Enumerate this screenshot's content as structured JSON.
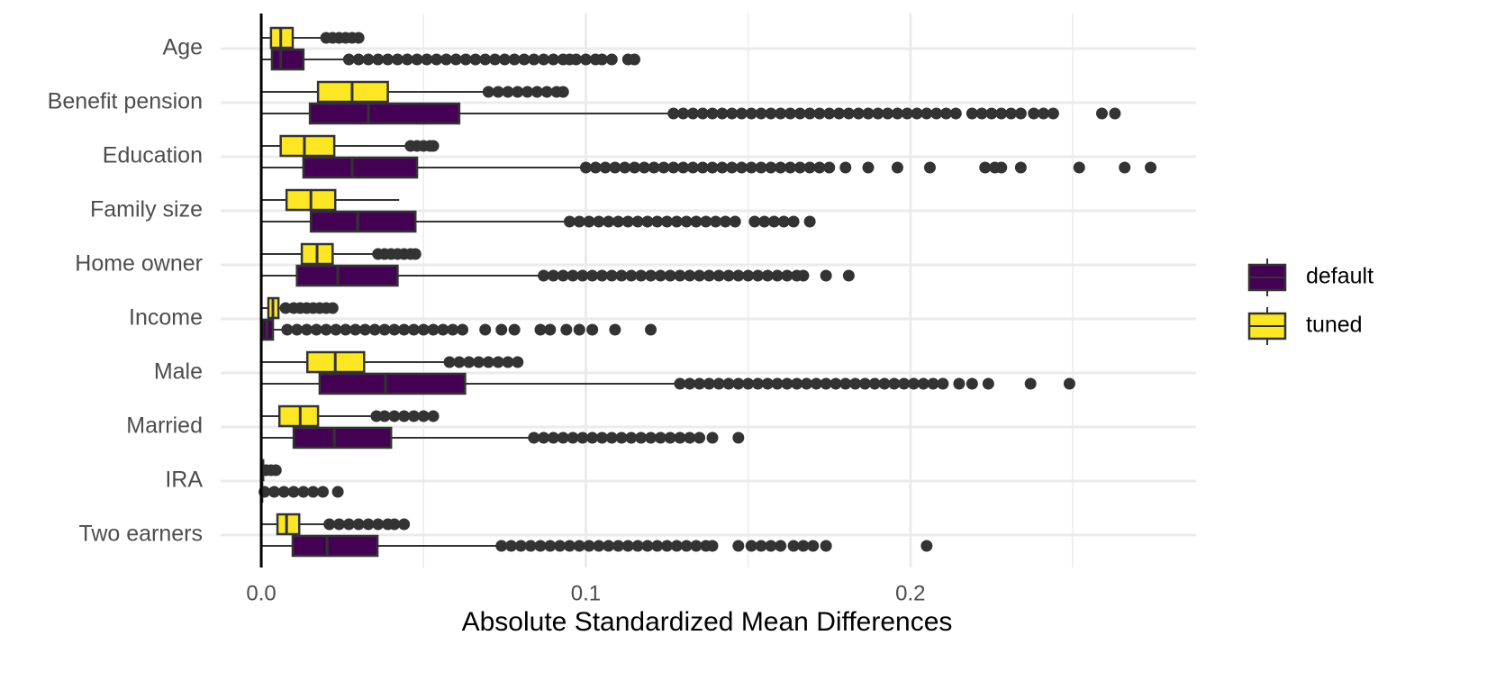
{
  "chart_data": {
    "type": "boxplot",
    "orientation": "horizontal",
    "x_label": "Absolute Standardized Mean Differences",
    "categories": [
      "Age",
      "Benefit pension",
      "Education",
      "Family size",
      "Home owner",
      "Income",
      "Male",
      "Married",
      "IRA",
      "Two earners"
    ],
    "xlim": [
      -0.0125,
      0.288
    ],
    "xticks": [
      {
        "value": 0,
        "label": "0.0"
      },
      {
        "value": 0.1,
        "label": "0.1"
      },
      {
        "value": 0.2,
        "label": "0.2"
      }
    ],
    "minor_xticks": [
      0.05,
      0.15,
      0.25
    ],
    "vline": 0,
    "grid": true,
    "legend_position": "right",
    "series": [
      {
        "name": "default",
        "color": "#440154",
        "boxes": [
          {
            "whislo": 0,
            "q1": 0.0033,
            "med": 0.006,
            "q3": 0.013,
            "whishi": 0.026,
            "fliers": [
              0.027,
              0.03,
              0.033,
              0.036,
              0.039,
              0.042,
              0.045,
              0.048,
              0.051,
              0.054,
              0.057,
              0.06,
              0.063,
              0.066,
              0.069,
              0.072,
              0.075,
              0.078,
              0.081,
              0.084,
              0.087,
              0.09,
              0.093,
              0.095,
              0.097,
              0.1,
              0.103,
              0.105,
              0.108,
              0.113,
              0.115
            ]
          },
          {
            "whislo": 0,
            "q1": 0.015,
            "med": 0.033,
            "q3": 0.061,
            "whishi": 0.126,
            "fliers": [
              0.127,
              0.13,
              0.133,
              0.136,
              0.139,
              0.142,
              0.145,
              0.148,
              0.151,
              0.154,
              0.157,
              0.16,
              0.163,
              0.166,
              0.169,
              0.172,
              0.175,
              0.178,
              0.181,
              0.184,
              0.187,
              0.19,
              0.193,
              0.196,
              0.199,
              0.202,
              0.205,
              0.208,
              0.211,
              0.214,
              0.219,
              0.222,
              0.225,
              0.228,
              0.231,
              0.234,
              0.238,
              0.241,
              0.244,
              0.259,
              0.263
            ]
          },
          {
            "whislo": 0,
            "q1": 0.013,
            "med": 0.028,
            "q3": 0.048,
            "whishi": 0.099,
            "fliers": [
              0.1,
              0.103,
              0.106,
              0.109,
              0.112,
              0.115,
              0.118,
              0.121,
              0.124,
              0.127,
              0.13,
              0.133,
              0.136,
              0.139,
              0.142,
              0.145,
              0.148,
              0.151,
              0.154,
              0.157,
              0.16,
              0.163,
              0.166,
              0.169,
              0.172,
              0.175,
              0.18,
              0.187,
              0.196,
              0.206,
              0.223,
              0.226,
              0.228,
              0.234,
              0.252,
              0.266,
              0.274
            ]
          },
          {
            "whislo": 0,
            "q1": 0.0153,
            "med": 0.0297,
            "q3": 0.0475,
            "whishi": 0.0944,
            "fliers": [
              0.095,
              0.098,
              0.101,
              0.104,
              0.107,
              0.11,
              0.113,
              0.116,
              0.119,
              0.122,
              0.125,
              0.128,
              0.131,
              0.134,
              0.137,
              0.14,
              0.143,
              0.146,
              0.152,
              0.155,
              0.158,
              0.161,
              0.164,
              0.169
            ]
          },
          {
            "whislo": 0,
            "q1": 0.011,
            "med": 0.0236,
            "q3": 0.042,
            "whishi": 0.086,
            "fliers": [
              0.087,
              0.09,
              0.093,
              0.096,
              0.099,
              0.102,
              0.105,
              0.108,
              0.111,
              0.114,
              0.117,
              0.12,
              0.123,
              0.126,
              0.129,
              0.132,
              0.135,
              0.138,
              0.141,
              0.144,
              0.147,
              0.15,
              0.153,
              0.156,
              0.159,
              0.162,
              0.165,
              0.167,
              0.174,
              0.181
            ]
          },
          {
            "whislo": 0,
            "q1": 0.0003,
            "med": 0.0017,
            "q3": 0.0036,
            "whishi": 0.007,
            "fliers": [
              0.008,
              0.011,
              0.014,
              0.017,
              0.02,
              0.023,
              0.026,
              0.029,
              0.032,
              0.035,
              0.038,
              0.041,
              0.044,
              0.047,
              0.05,
              0.053,
              0.056,
              0.059,
              0.062,
              0.069,
              0.074,
              0.078,
              0.086,
              0.089,
              0.094,
              0.098,
              0.102,
              0.109,
              0.12
            ]
          },
          {
            "whislo": 0,
            "q1": 0.018,
            "med": 0.0383,
            "q3": 0.0628,
            "whishi": 0.128,
            "fliers": [
              0.129,
              0.132,
              0.135,
              0.138,
              0.141,
              0.144,
              0.147,
              0.15,
              0.153,
              0.156,
              0.159,
              0.162,
              0.165,
              0.168,
              0.171,
              0.174,
              0.177,
              0.18,
              0.183,
              0.186,
              0.189,
              0.192,
              0.195,
              0.198,
              0.201,
              0.204,
              0.207,
              0.21,
              0.215,
              0.219,
              0.224,
              0.237,
              0.249
            ]
          },
          {
            "whislo": 0,
            "q1": 0.01,
            "med": 0.0225,
            "q3": 0.04,
            "whishi": 0.083,
            "fliers": [
              0.084,
              0.087,
              0.09,
              0.093,
              0.096,
              0.099,
              0.102,
              0.105,
              0.108,
              0.111,
              0.114,
              0.117,
              0.12,
              0.123,
              0.126,
              0.129,
              0.132,
              0.135,
              0.139,
              0.147
            ]
          },
          {
            "whislo": 0,
            "q1": 0,
            "med": 0,
            "q3": 0.0002,
            "whishi": 0.0005,
            "fliers": [
              0.001,
              0.004,
              0.007,
              0.01,
              0.013,
              0.016,
              0.019,
              0.0236
            ]
          },
          {
            "whislo": 0,
            "q1": 0.0097,
            "med": 0.0203,
            "q3": 0.0358,
            "whishi": 0.0736,
            "fliers": [
              0.074,
              0.077,
              0.08,
              0.083,
              0.086,
              0.089,
              0.092,
              0.095,
              0.098,
              0.101,
              0.104,
              0.107,
              0.11,
              0.113,
              0.116,
              0.119,
              0.122,
              0.125,
              0.128,
              0.131,
              0.134,
              0.137,
              0.139,
              0.147,
              0.151,
              0.154,
              0.157,
              0.16,
              0.164,
              0.167,
              0.17,
              0.174,
              0.205
            ]
          }
        ]
      },
      {
        "name": "tuned",
        "color": "#fde725",
        "boxes": [
          {
            "whislo": 0,
            "q1": 0.003,
            "med": 0.006,
            "q3": 0.0097,
            "whishi": 0.019,
            "fliers": [
              0.02,
              0.022,
              0.024,
              0.026,
              0.028,
              0.03
            ]
          },
          {
            "whislo": 0,
            "q1": 0.0175,
            "med": 0.028,
            "q3": 0.039,
            "whishi": 0.069,
            "fliers": [
              0.07,
              0.073,
              0.076,
              0.079,
              0.082,
              0.085,
              0.088,
              0.091,
              0.093
            ]
          },
          {
            "whislo": 0,
            "q1": 0.006,
            "med": 0.0133,
            "q3": 0.0225,
            "whishi": 0.045,
            "fliers": [
              0.046,
              0.048,
              0.05,
              0.052,
              0.053
            ]
          },
          {
            "whislo": 0,
            "q1": 0.0078,
            "med": 0.0153,
            "q3": 0.0228,
            "whishi": 0.0425,
            "fliers": []
          },
          {
            "whislo": 0,
            "q1": 0.0125,
            "med": 0.0172,
            "q3": 0.022,
            "whishi": 0.0356,
            "fliers": [
              0.036,
              0.038,
              0.04,
              0.042,
              0.044,
              0.046,
              0.0475
            ]
          },
          {
            "whislo": 0,
            "q1": 0.0022,
            "med": 0.0036,
            "q3": 0.0053,
            "whishi": 0.0072,
            "fliers": [
              0.0075,
              0.01,
              0.012,
              0.014,
              0.016,
              0.018,
              0.02,
              0.022
            ]
          },
          {
            "whislo": 0,
            "q1": 0.0142,
            "med": 0.0228,
            "q3": 0.0317,
            "whishi": 0.057,
            "fliers": [
              0.058,
              0.061,
              0.064,
              0.067,
              0.07,
              0.073,
              0.076,
              0.079
            ]
          },
          {
            "whislo": 0,
            "q1": 0.0056,
            "med": 0.012,
            "q3": 0.0175,
            "whishi": 0.0347,
            "fliers": [
              0.0355,
              0.038,
              0.041,
              0.044,
              0.047,
              0.05,
              0.053
            ]
          },
          {
            "whislo": 0,
            "q1": 0,
            "med": 0.0003,
            "q3": 0.0006,
            "whishi": 0.001,
            "fliers": [
              0.0015,
              0.003,
              0.0045
            ]
          },
          {
            "whislo": 0,
            "q1": 0.005,
            "med": 0.0078,
            "q3": 0.0117,
            "whishi": 0.02,
            "fliers": [
              0.021,
              0.024,
              0.027,
              0.03,
              0.033,
              0.036,
              0.039,
              0.041,
              0.044
            ]
          }
        ]
      }
    ]
  }
}
